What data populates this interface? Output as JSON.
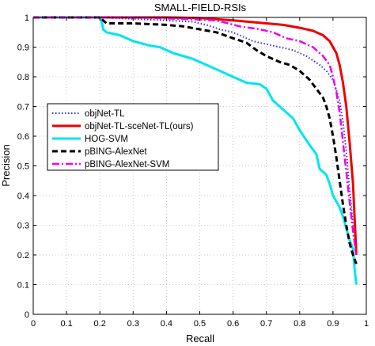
{
  "chart_data": {
    "type": "line",
    "title": "SMALL-FIELD-RSIs",
    "xlabel": "Recall",
    "ylabel": "Precision",
    "xlim": [
      0,
      1
    ],
    "ylim": [
      0,
      1
    ],
    "grid": true,
    "legend_position": "center-left",
    "x_ticks": [
      0,
      0.1,
      0.2,
      0.3,
      0.4,
      0.5,
      0.6,
      0.7,
      0.8,
      0.9,
      1
    ],
    "x_tick_labels": [
      "0",
      "0.1",
      "0.2",
      "0.3",
      "0.4",
      "0.5",
      "0.6",
      "0.7",
      "0.8",
      "0.9",
      "1"
    ],
    "y_ticks": [
      0,
      0.1,
      0.2,
      0.3,
      0.4,
      0.5,
      0.6,
      0.7,
      0.8,
      0.9,
      1
    ],
    "y_tick_labels": [
      "0",
      "0.1",
      "0.2",
      "0.3",
      "0.4",
      "0.5",
      "0.6",
      "0.7",
      "0.8",
      "0.9",
      "1"
    ],
    "series": [
      {
        "name": "objNet-TL",
        "color": "#3333cc",
        "dash": "1.5,2.5",
        "width": 2,
        "points": [
          [
            0,
            1
          ],
          [
            0.15,
            1
          ],
          [
            0.2,
            1
          ],
          [
            0.3,
            0.995
          ],
          [
            0.4,
            0.99
          ],
          [
            0.48,
            0.985
          ],
          [
            0.52,
            0.975
          ],
          [
            0.56,
            0.96
          ],
          [
            0.6,
            0.95
          ],
          [
            0.63,
            0.935
          ],
          [
            0.66,
            0.92
          ],
          [
            0.7,
            0.91
          ],
          [
            0.74,
            0.9
          ],
          [
            0.78,
            0.89
          ],
          [
            0.82,
            0.87
          ],
          [
            0.86,
            0.84
          ],
          [
            0.88,
            0.82
          ],
          [
            0.9,
            0.79
          ],
          [
            0.92,
            0.72
          ],
          [
            0.93,
            0.65
          ],
          [
            0.94,
            0.55
          ],
          [
            0.95,
            0.42
          ],
          [
            0.96,
            0.3
          ],
          [
            0.97,
            0.22
          ]
        ]
      },
      {
        "name": "objNet-TL-sceNet-TL(ours)",
        "color": "#ee0000",
        "dash": "",
        "width": 3,
        "points": [
          [
            0,
            1
          ],
          [
            0.2,
            1
          ],
          [
            0.4,
            1
          ],
          [
            0.5,
            0.998
          ],
          [
            0.6,
            0.99
          ],
          [
            0.7,
            0.98
          ],
          [
            0.75,
            0.975
          ],
          [
            0.8,
            0.965
          ],
          [
            0.84,
            0.955
          ],
          [
            0.87,
            0.94
          ],
          [
            0.89,
            0.92
          ],
          [
            0.9,
            0.9
          ],
          [
            0.91,
            0.88
          ],
          [
            0.92,
            0.84
          ],
          [
            0.93,
            0.78
          ],
          [
            0.94,
            0.7
          ],
          [
            0.95,
            0.58
          ],
          [
            0.96,
            0.44
          ],
          [
            0.965,
            0.32
          ],
          [
            0.97,
            0.2
          ]
        ]
      },
      {
        "name": "HOG-SVM",
        "color": "#00e5ee",
        "dash": "",
        "width": 3,
        "points": [
          [
            0,
            1
          ],
          [
            0.2,
            1
          ],
          [
            0.205,
            0.99
          ],
          [
            0.21,
            0.96
          ],
          [
            0.22,
            0.95
          ],
          [
            0.26,
            0.94
          ],
          [
            0.3,
            0.92
          ],
          [
            0.35,
            0.905
          ],
          [
            0.38,
            0.9
          ],
          [
            0.42,
            0.88
          ],
          [
            0.48,
            0.86
          ],
          [
            0.52,
            0.84
          ],
          [
            0.56,
            0.82
          ],
          [
            0.6,
            0.8
          ],
          [
            0.64,
            0.78
          ],
          [
            0.68,
            0.775
          ],
          [
            0.7,
            0.76
          ],
          [
            0.72,
            0.72
          ],
          [
            0.75,
            0.69
          ],
          [
            0.78,
            0.66
          ],
          [
            0.8,
            0.62
          ],
          [
            0.83,
            0.57
          ],
          [
            0.85,
            0.54
          ],
          [
            0.86,
            0.49
          ],
          [
            0.88,
            0.47
          ],
          [
            0.89,
            0.44
          ],
          [
            0.9,
            0.4
          ],
          [
            0.92,
            0.36
          ],
          [
            0.93,
            0.33
          ],
          [
            0.94,
            0.29
          ],
          [
            0.95,
            0.25
          ],
          [
            0.96,
            0.22
          ],
          [
            0.965,
            0.15
          ],
          [
            0.97,
            0.1
          ]
        ]
      },
      {
        "name": "pBING-AlexNet",
        "color": "#000000",
        "dash": "7,4",
        "width": 3,
        "points": [
          [
            0,
            1
          ],
          [
            0.2,
            1
          ],
          [
            0.22,
            0.98
          ],
          [
            0.3,
            0.98
          ],
          [
            0.4,
            0.975
          ],
          [
            0.45,
            0.97
          ],
          [
            0.5,
            0.96
          ],
          [
            0.55,
            0.95
          ],
          [
            0.6,
            0.93
          ],
          [
            0.64,
            0.915
          ],
          [
            0.67,
            0.89
          ],
          [
            0.7,
            0.87
          ],
          [
            0.74,
            0.85
          ],
          [
            0.77,
            0.84
          ],
          [
            0.8,
            0.82
          ],
          [
            0.83,
            0.79
          ],
          [
            0.85,
            0.76
          ],
          [
            0.87,
            0.73
          ],
          [
            0.88,
            0.7
          ],
          [
            0.89,
            0.66
          ],
          [
            0.9,
            0.6
          ],
          [
            0.91,
            0.53
          ],
          [
            0.92,
            0.45
          ],
          [
            0.93,
            0.37
          ],
          [
            0.94,
            0.3
          ],
          [
            0.95,
            0.24
          ],
          [
            0.96,
            0.2
          ],
          [
            0.97,
            0.17
          ]
        ]
      },
      {
        "name": "pBING-AlexNet-SVM",
        "color": "#ee00ee",
        "dash": "9,3,2,3",
        "width": 2.5,
        "points": [
          [
            0,
            1
          ],
          [
            0.3,
            1
          ],
          [
            0.45,
            0.995
          ],
          [
            0.55,
            0.99
          ],
          [
            0.62,
            0.97
          ],
          [
            0.68,
            0.96
          ],
          [
            0.72,
            0.95
          ],
          [
            0.76,
            0.93
          ],
          [
            0.8,
            0.92
          ],
          [
            0.84,
            0.9
          ],
          [
            0.87,
            0.87
          ],
          [
            0.89,
            0.84
          ],
          [
            0.9,
            0.8
          ],
          [
            0.91,
            0.75
          ],
          [
            0.92,
            0.68
          ],
          [
            0.93,
            0.58
          ],
          [
            0.94,
            0.48
          ],
          [
            0.95,
            0.38
          ],
          [
            0.96,
            0.28
          ],
          [
            0.97,
            0.2
          ]
        ]
      }
    ]
  }
}
